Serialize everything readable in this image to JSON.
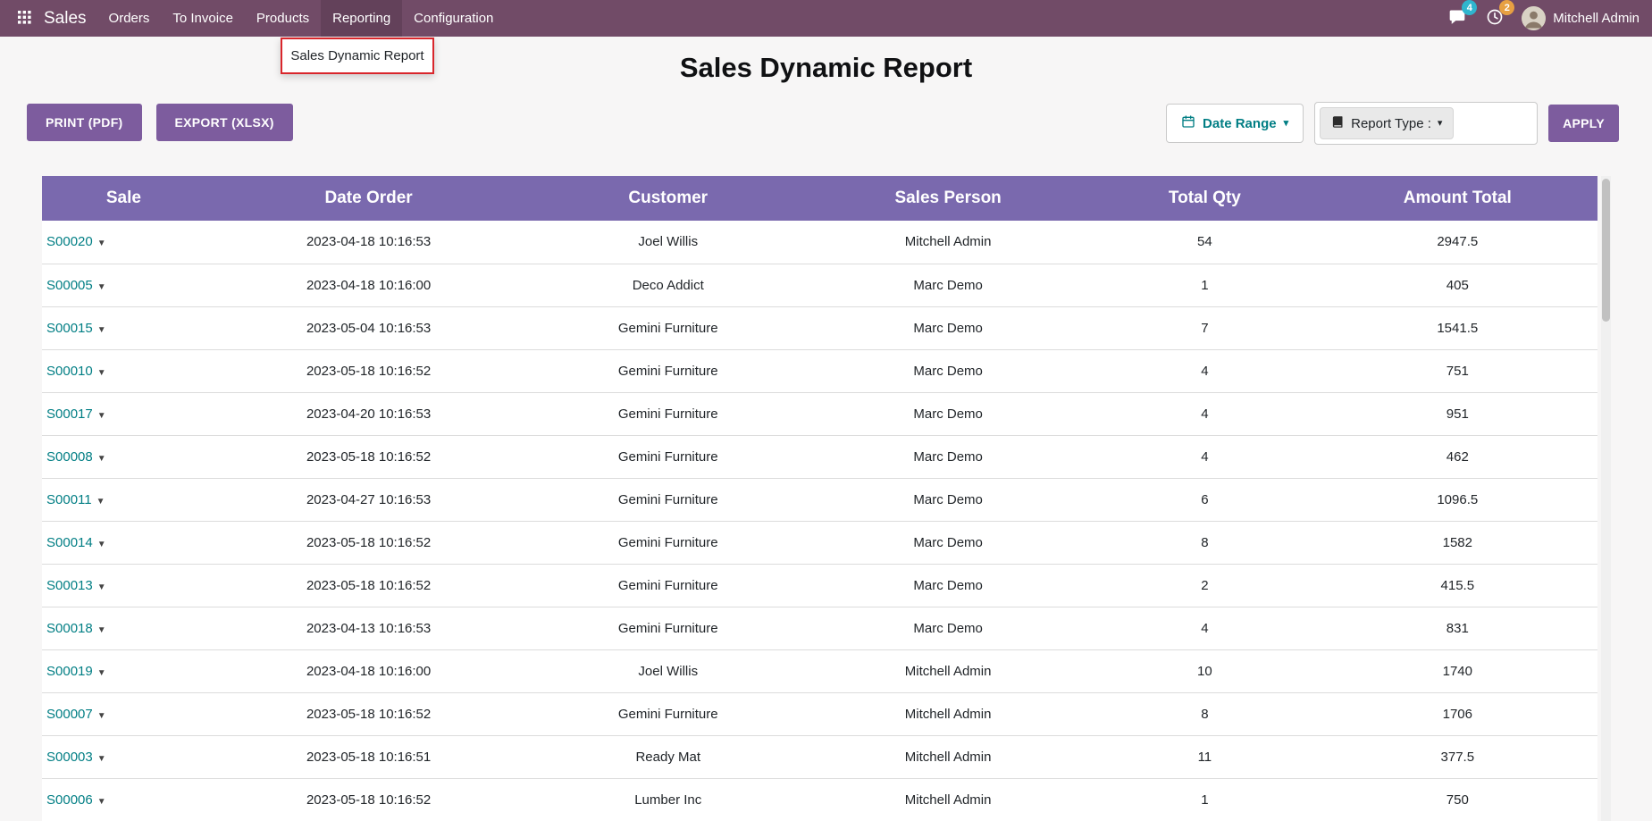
{
  "navbar": {
    "brand": "Sales",
    "items": [
      "Orders",
      "To Invoice",
      "Products",
      "Reporting",
      "Configuration"
    ],
    "messages_badge": "4",
    "activities_badge": "2",
    "user": "Mitchell Admin"
  },
  "dropdown": {
    "item": "Sales Dynamic Report"
  },
  "page": {
    "title": "Sales Dynamic Report"
  },
  "toolbar": {
    "print_label": "PRINT (PDF)",
    "export_label": "EXPORT (XLSX)",
    "date_range_label": "Date Range",
    "report_type_label": "Report Type :",
    "apply_label": "APPLY"
  },
  "table": {
    "headers": [
      "Sale",
      "Date Order",
      "Customer",
      "Sales Person",
      "Total Qty",
      "Amount Total"
    ],
    "rows": [
      {
        "sale": "S00020",
        "date": "2023-04-18 10:16:53",
        "customer": "Joel Willis",
        "salesperson": "Mitchell Admin",
        "qty": "54",
        "total": "2947.5"
      },
      {
        "sale": "S00005",
        "date": "2023-04-18 10:16:00",
        "customer": "Deco Addict",
        "salesperson": "Marc Demo",
        "qty": "1",
        "total": "405"
      },
      {
        "sale": "S00015",
        "date": "2023-05-04 10:16:53",
        "customer": "Gemini Furniture",
        "salesperson": "Marc Demo",
        "qty": "7",
        "total": "1541.5"
      },
      {
        "sale": "S00010",
        "date": "2023-05-18 10:16:52",
        "customer": "Gemini Furniture",
        "salesperson": "Marc Demo",
        "qty": "4",
        "total": "751"
      },
      {
        "sale": "S00017",
        "date": "2023-04-20 10:16:53",
        "customer": "Gemini Furniture",
        "salesperson": "Marc Demo",
        "qty": "4",
        "total": "951"
      },
      {
        "sale": "S00008",
        "date": "2023-05-18 10:16:52",
        "customer": "Gemini Furniture",
        "salesperson": "Marc Demo",
        "qty": "4",
        "total": "462"
      },
      {
        "sale": "S00011",
        "date": "2023-04-27 10:16:53",
        "customer": "Gemini Furniture",
        "salesperson": "Marc Demo",
        "qty": "6",
        "total": "1096.5"
      },
      {
        "sale": "S00014",
        "date": "2023-05-18 10:16:52",
        "customer": "Gemini Furniture",
        "salesperson": "Marc Demo",
        "qty": "8",
        "total": "1582"
      },
      {
        "sale": "S00013",
        "date": "2023-05-18 10:16:52",
        "customer": "Gemini Furniture",
        "salesperson": "Marc Demo",
        "qty": "2",
        "total": "415.5"
      },
      {
        "sale": "S00018",
        "date": "2023-04-13 10:16:53",
        "customer": "Gemini Furniture",
        "salesperson": "Marc Demo",
        "qty": "4",
        "total": "831"
      },
      {
        "sale": "S00019",
        "date": "2023-04-18 10:16:00",
        "customer": "Joel Willis",
        "salesperson": "Mitchell Admin",
        "qty": "10",
        "total": "1740"
      },
      {
        "sale": "S00007",
        "date": "2023-05-18 10:16:52",
        "customer": "Gemini Furniture",
        "salesperson": "Mitchell Admin",
        "qty": "8",
        "total": "1706"
      },
      {
        "sale": "S00003",
        "date": "2023-05-18 10:16:51",
        "customer": "Ready Mat",
        "salesperson": "Mitchell Admin",
        "qty": "11",
        "total": "377.5"
      },
      {
        "sale": "S00006",
        "date": "2023-05-18 10:16:52",
        "customer": "Lumber Inc",
        "salesperson": "Mitchell Admin",
        "qty": "1",
        "total": "750"
      }
    ]
  },
  "colors": {
    "navbar_bg": "#714B67",
    "header_bg": "#7A69AE",
    "button_purple": "#7D5C9E",
    "link_teal": "#017E84",
    "badge_teal": "#2FB5CE",
    "badge_orange": "#E7A042",
    "highlight_red": "#D9262C"
  }
}
